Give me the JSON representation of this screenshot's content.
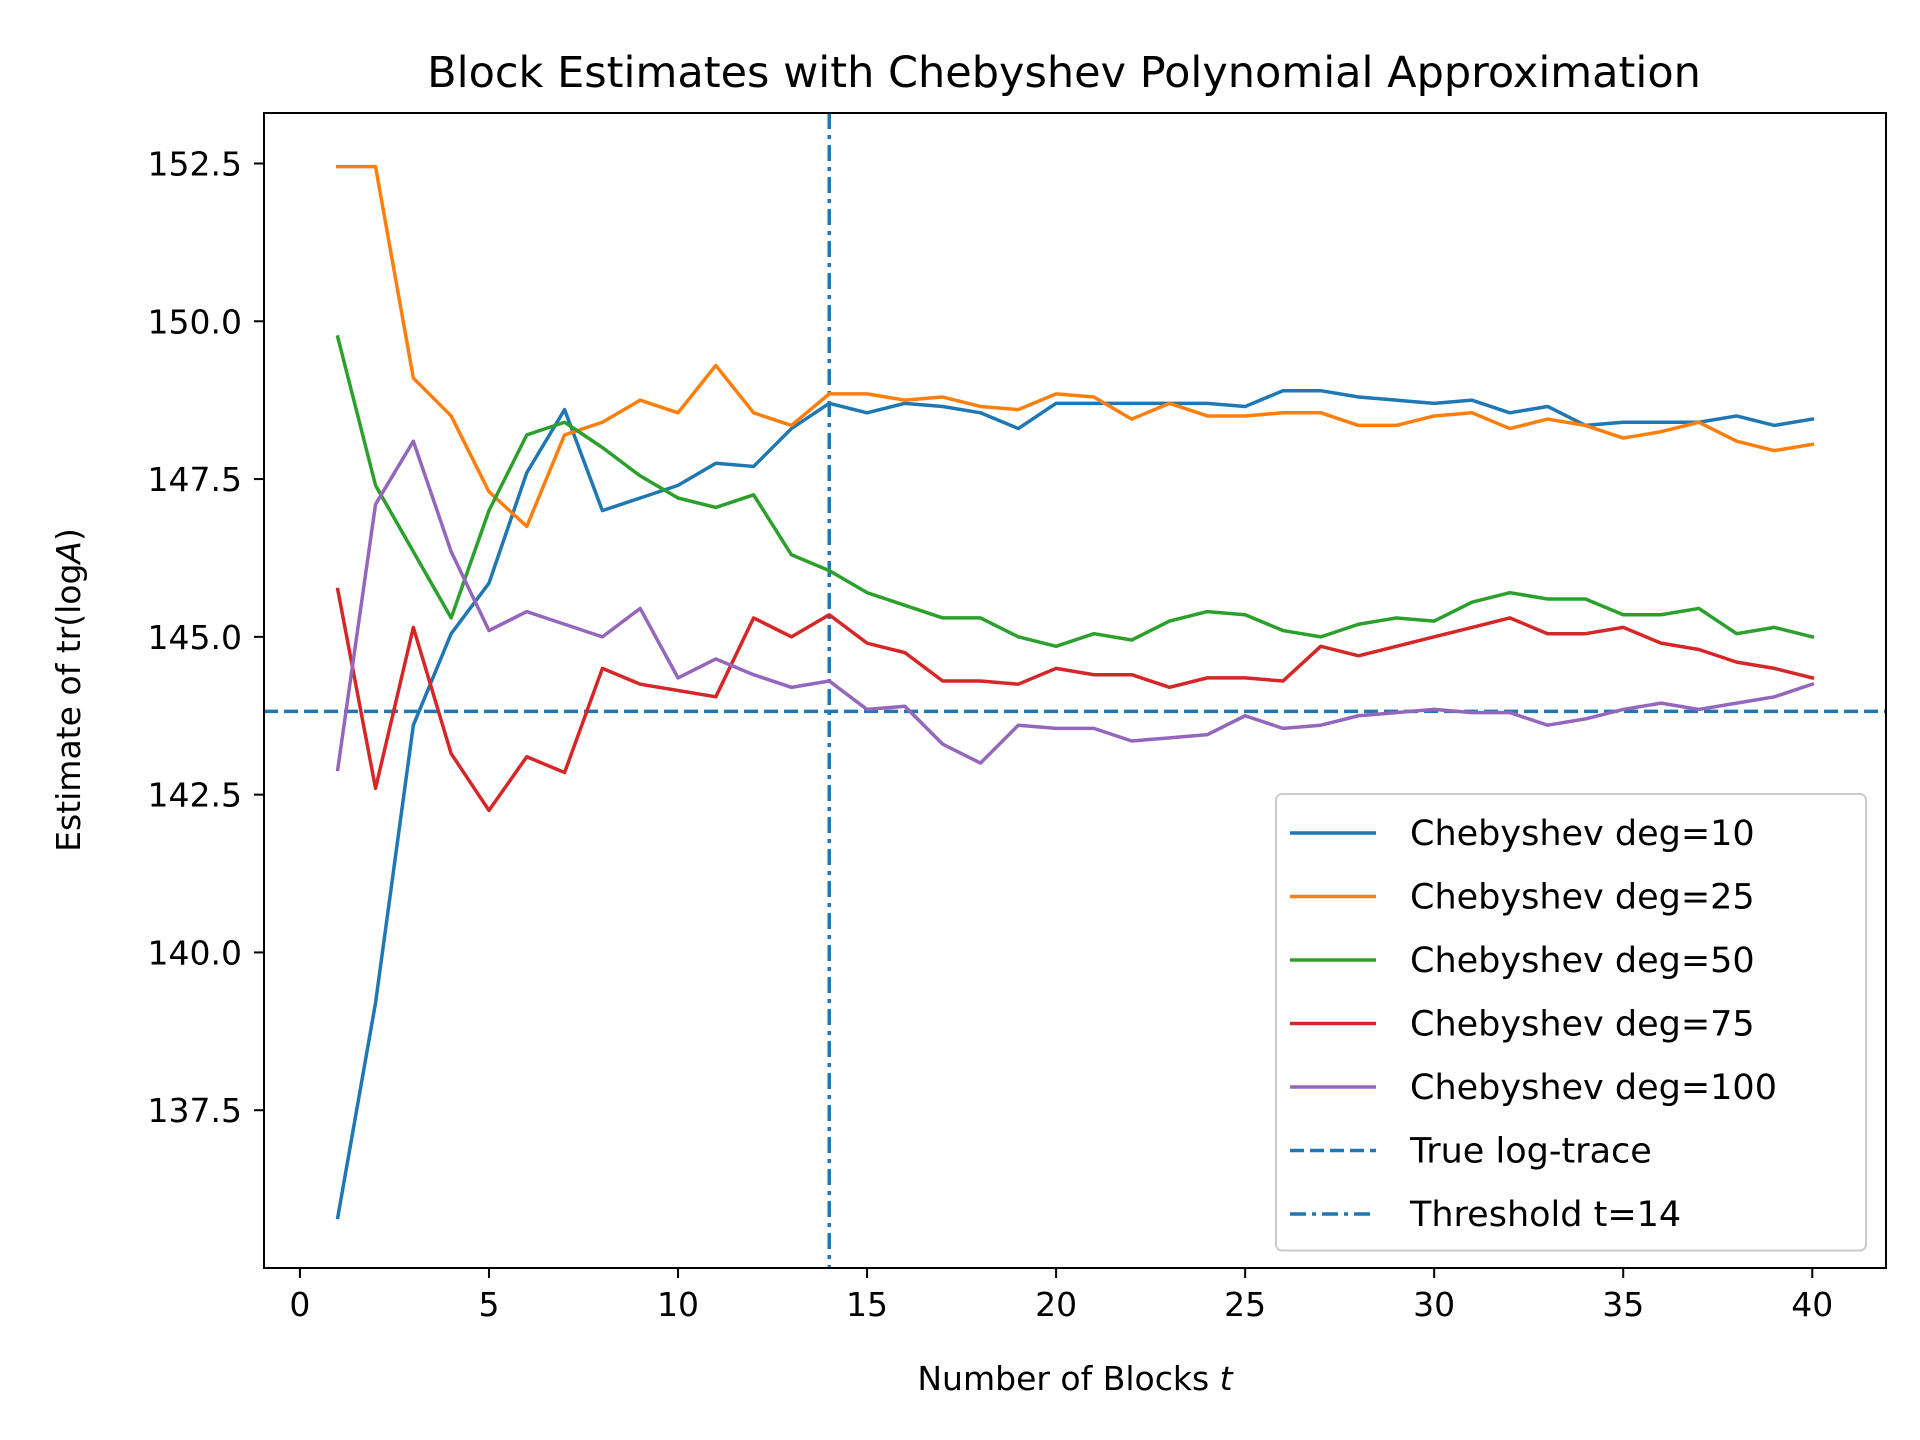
{
  "chart_data": {
    "type": "line",
    "title": "Block Estimates with Chebyshev Polynomial Approximation",
    "xlabel_text": "Number of Blocks ",
    "xlabel_var": "t",
    "ylabel_text": "Estimate of tr(log",
    "ylabel_var": "A",
    "ylabel_close": ")",
    "xlim": [
      -0.95,
      41.95
    ],
    "ylim": [
      135.0,
      153.3
    ],
    "xticks": [
      0,
      5,
      10,
      15,
      20,
      25,
      30,
      35,
      40
    ],
    "xtick_labels": [
      "0",
      "5",
      "10",
      "15",
      "20",
      "25",
      "30",
      "35",
      "40"
    ],
    "yticks": [
      137.5,
      140.0,
      142.5,
      145.0,
      147.5,
      150.0,
      152.5
    ],
    "ytick_labels": [
      "137.5",
      "140.0",
      "142.5",
      "145.0",
      "147.5",
      "150.0",
      "152.5"
    ],
    "x": [
      1,
      2,
      3,
      4,
      5,
      6,
      7,
      8,
      9,
      10,
      11,
      12,
      13,
      14,
      15,
      16,
      17,
      18,
      19,
      20,
      21,
      22,
      23,
      24,
      25,
      26,
      27,
      28,
      29,
      30,
      31,
      32,
      33,
      34,
      35,
      36,
      37,
      38,
      39,
      40
    ],
    "series": [
      {
        "name": "Chebyshev deg=10",
        "color": "#1f77b4",
        "values": [
          135.8,
          139.2,
          143.6,
          145.05,
          145.85,
          147.6,
          148.6,
          147.0,
          147.2,
          147.4,
          147.75,
          147.7,
          148.3,
          148.7,
          148.55,
          148.7,
          148.65,
          148.55,
          148.3,
          148.7,
          148.7,
          148.7,
          148.7,
          148.7,
          148.65,
          148.9,
          148.9,
          148.8,
          148.75,
          148.7,
          148.75,
          148.55,
          148.65,
          148.35,
          148.4,
          148.4,
          148.4,
          148.5,
          148.35,
          148.45
        ]
      },
      {
        "name": "Chebyshev deg=25",
        "color": "#ff7f0e",
        "values": [
          152.45,
          152.45,
          149.1,
          148.5,
          147.3,
          146.75,
          148.2,
          148.4,
          148.75,
          148.55,
          149.3,
          148.55,
          148.35,
          148.85,
          148.85,
          148.75,
          148.8,
          148.65,
          148.6,
          148.85,
          148.8,
          148.45,
          148.7,
          148.5,
          148.5,
          148.55,
          148.55,
          148.35,
          148.35,
          148.5,
          148.55,
          148.3,
          148.45,
          148.35,
          148.15,
          148.25,
          148.4,
          148.1,
          147.95,
          148.05
        ]
      },
      {
        "name": "Chebyshev deg=50",
        "color": "#2ca02c",
        "values": [
          149.75,
          147.4,
          146.35,
          145.3,
          147.0,
          148.2,
          148.4,
          148.0,
          147.55,
          147.2,
          147.05,
          147.25,
          146.3,
          146.05,
          145.7,
          145.5,
          145.3,
          145.3,
          145.0,
          144.85,
          145.05,
          144.95,
          145.25,
          145.4,
          145.35,
          145.1,
          145.0,
          145.2,
          145.3,
          145.25,
          145.55,
          145.7,
          145.6,
          145.6,
          145.35,
          145.35,
          145.45,
          145.05,
          145.15,
          145.0
        ]
      },
      {
        "name": "Chebyshev deg=75",
        "color": "#d62728",
        "values": [
          145.75,
          142.6,
          145.15,
          143.15,
          142.25,
          143.1,
          142.85,
          144.5,
          144.25,
          144.15,
          144.05,
          145.3,
          145.0,
          145.35,
          144.9,
          144.75,
          144.3,
          144.3,
          144.25,
          144.5,
          144.4,
          144.4,
          144.2,
          144.35,
          144.35,
          144.3,
          144.85,
          144.7,
          144.85,
          145.0,
          145.15,
          145.3,
          145.05,
          145.05,
          145.15,
          144.9,
          144.8,
          144.6,
          144.5,
          144.35
        ]
      },
      {
        "name": "Chebyshev deg=100",
        "color": "#9467bd",
        "values": [
          142.9,
          147.1,
          148.1,
          146.35,
          145.1,
          145.4,
          145.2,
          145.0,
          145.45,
          144.35,
          144.65,
          144.4,
          144.2,
          144.3,
          143.85,
          143.9,
          143.3,
          143.0,
          143.6,
          143.55,
          143.55,
          143.35,
          143.4,
          143.45,
          143.75,
          143.55,
          143.6,
          143.75,
          143.8,
          143.85,
          143.8,
          143.8,
          143.6,
          143.7,
          143.85,
          143.95,
          143.85,
          143.95,
          144.05,
          144.25
        ]
      }
    ],
    "reference_lines": [
      {
        "name": "True log-trace",
        "orientation": "horizontal",
        "value": 143.82,
        "style": "dashed",
        "color": "#1f77b4"
      },
      {
        "name": "Threshold t=14",
        "orientation": "vertical",
        "value": 14,
        "style": "dashdot",
        "color": "#1f77b4"
      }
    ],
    "legend_position": "lower-right"
  }
}
